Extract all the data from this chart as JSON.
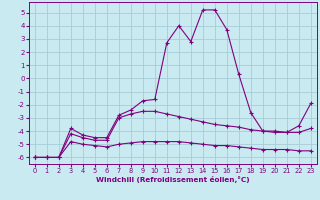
{
  "xlabel": "Windchill (Refroidissement éolien,°C)",
  "xlim": [
    -0.5,
    23.5
  ],
  "ylim": [
    -6.5,
    5.8
  ],
  "xticks": [
    0,
    1,
    2,
    3,
    4,
    5,
    6,
    7,
    8,
    9,
    10,
    11,
    12,
    13,
    14,
    15,
    16,
    17,
    18,
    19,
    20,
    21,
    22,
    23
  ],
  "yticks": [
    -6,
    -5,
    -4,
    -3,
    -2,
    -1,
    0,
    1,
    2,
    3,
    4,
    5
  ],
  "bg_color": "#c9eaf0",
  "line_color": "#800080",
  "grid_color": "#a8cdd8",
  "curve1_x": [
    0,
    1,
    2,
    3,
    4,
    5,
    6,
    7,
    8,
    9,
    10,
    11,
    12,
    13,
    14,
    15,
    16,
    17,
    18,
    19,
    20,
    21,
    22,
    23
  ],
  "curve1_y": [
    -6.0,
    -6.0,
    -6.0,
    -3.8,
    -4.3,
    -4.5,
    -4.5,
    -2.8,
    -2.4,
    -1.7,
    -1.6,
    2.7,
    4.0,
    2.8,
    5.2,
    5.2,
    3.7,
    0.3,
    -2.6,
    -4.0,
    -4.1,
    -4.1,
    -3.6,
    -1.9
  ],
  "curve2_x": [
    0,
    1,
    2,
    3,
    4,
    5,
    6,
    7,
    8,
    9,
    10,
    11,
    12,
    13,
    14,
    15,
    16,
    17,
    18,
    19,
    20,
    21,
    22,
    23
  ],
  "curve2_y": [
    -6.0,
    -6.0,
    -6.0,
    -4.2,
    -4.5,
    -4.7,
    -4.7,
    -3.0,
    -2.7,
    -2.5,
    -2.5,
    -2.7,
    -2.9,
    -3.1,
    -3.3,
    -3.5,
    -3.6,
    -3.7,
    -3.9,
    -4.0,
    -4.0,
    -4.1,
    -4.1,
    -3.8
  ],
  "curve3_x": [
    0,
    1,
    2,
    3,
    4,
    5,
    6,
    7,
    8,
    9,
    10,
    11,
    12,
    13,
    14,
    15,
    16,
    17,
    18,
    19,
    20,
    21,
    22,
    23
  ],
  "curve3_y": [
    -6.0,
    -6.0,
    -6.0,
    -4.8,
    -5.0,
    -5.1,
    -5.2,
    -5.0,
    -4.9,
    -4.8,
    -4.8,
    -4.8,
    -4.8,
    -4.9,
    -5.0,
    -5.1,
    -5.1,
    -5.2,
    -5.3,
    -5.4,
    -5.4,
    -5.4,
    -5.5,
    -5.5
  ]
}
